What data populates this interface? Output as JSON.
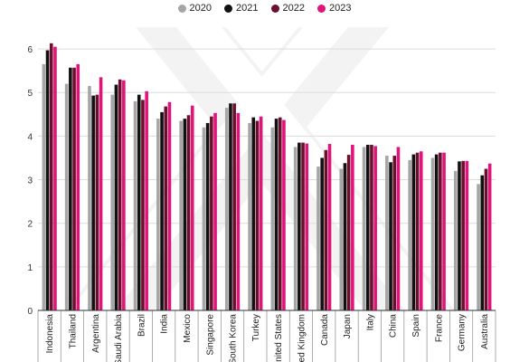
{
  "colors": {
    "series": [
      "#a6a6a6",
      "#111111",
      "#6b0f2e",
      "#e0157a"
    ],
    "grid": "#dcdcdc",
    "axis": "#333333",
    "watermark": "#f2f2f2"
  },
  "chart_data": {
    "type": "bar",
    "title": "",
    "xlabel": "",
    "ylabel": "",
    "ylim": [
      0,
      6.5
    ],
    "yticks": [
      "0",
      "1",
      "2",
      "3",
      "4",
      "5",
      "6"
    ],
    "grid": true,
    "legend_position": "top-center",
    "categories": [
      "Indonesia",
      "Thailand",
      "Argentina",
      "Saudi Arabia",
      "Brazil",
      "India",
      "Mexico",
      "Singapore",
      "South Korea",
      "Turkey",
      "United States",
      "United Kingdom",
      "Canada",
      "Japan",
      "Italy",
      "China",
      "Spain",
      "France",
      "Germany",
      "Australia"
    ],
    "series": [
      {
        "name": "2020",
        "values": [
          5.65,
          5.2,
          5.15,
          4.95,
          4.8,
          4.4,
          4.35,
          4.2,
          4.65,
          4.3,
          4.2,
          3.75,
          3.3,
          3.25,
          3.75,
          3.55,
          3.45,
          3.5,
          3.2,
          2.9
        ]
      },
      {
        "name": "2021",
        "values": [
          5.97,
          5.57,
          4.93,
          5.18,
          4.95,
          4.55,
          4.4,
          4.3,
          4.75,
          4.43,
          4.4,
          3.85,
          3.5,
          3.38,
          3.8,
          3.4,
          3.58,
          3.58,
          3.42,
          3.1
        ]
      },
      {
        "name": "2022",
        "values": [
          6.13,
          5.57,
          4.95,
          5.3,
          4.83,
          4.68,
          4.48,
          4.45,
          4.75,
          4.35,
          4.43,
          3.85,
          3.68,
          3.57,
          3.8,
          3.55,
          3.62,
          3.62,
          3.43,
          3.25
        ]
      },
      {
        "name": "2023",
        "values": [
          6.05,
          5.65,
          5.35,
          5.28,
          5.03,
          4.78,
          4.7,
          4.53,
          4.53,
          4.45,
          4.37,
          3.83,
          3.82,
          3.8,
          3.77,
          3.75,
          3.65,
          3.62,
          3.43,
          3.37
        ]
      }
    ]
  }
}
